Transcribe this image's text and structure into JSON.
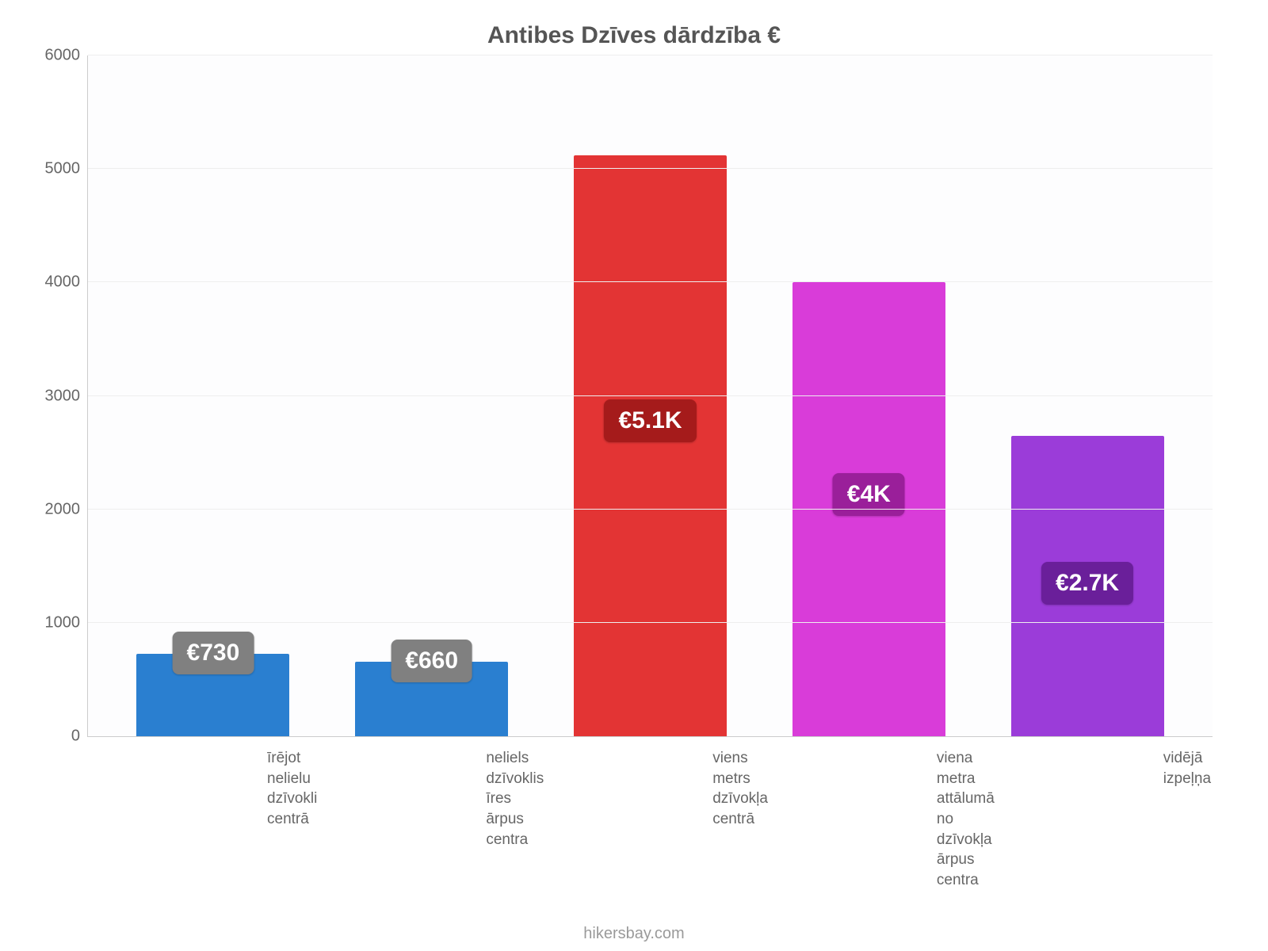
{
  "chart": {
    "type": "bar",
    "title": "Antibes Dzīves dārdzība €",
    "title_fontsize": 30,
    "title_color": "#555555",
    "background_color": "#ffffff",
    "plot_background": "#fdfdfe",
    "grid_color": "#eeeeee",
    "axis_color": "#cccccc",
    "tick_color": "#666666",
    "tick_fontsize": 20,
    "xlabel_fontsize": 19,
    "value_label_fontsize": 30,
    "ylim": [
      0,
      6000
    ],
    "ytick_step": 1000,
    "yticks": [
      0,
      1000,
      2000,
      3000,
      4000,
      5000,
      6000
    ],
    "bar_width_pct": 70,
    "attribution": "hikersbay.com",
    "attribution_color": "#9a9a9a",
    "attribution_fontsize": 20,
    "bars": [
      {
        "category": "īrējot\nnelielu\ndzīvokli\ncentrā",
        "value": 730,
        "display": "€730",
        "color": "#2a7fd0",
        "badge_bg": "#808080",
        "badge_offset_mode": "top"
      },
      {
        "category": "neliels\ndzīvoklis\nīres ārpus centra",
        "value": 660,
        "display": "€660",
        "color": "#2a7fd0",
        "badge_bg": "#808080",
        "badge_offset_mode": "top"
      },
      {
        "category": "viens metrs dzīvokļa\ncentrā",
        "value": 5120,
        "display": "€5.1K",
        "color": "#e33434",
        "badge_bg": "#a51b1b",
        "badge_offset_mode": "mid"
      },
      {
        "category": "viena metra attālumā\nno dzīvokļa\nārpus centra",
        "value": 4000,
        "display": "€4K",
        "color": "#d93cd9",
        "badge_bg": "#9a1f9a",
        "badge_offset_mode": "mid"
      },
      {
        "category": "vidējā\nizpeļņa",
        "value": 2650,
        "display": "€2.7K",
        "color": "#9b3cd9",
        "badge_bg": "#6a1f9a",
        "badge_offset_mode": "mid"
      }
    ]
  }
}
